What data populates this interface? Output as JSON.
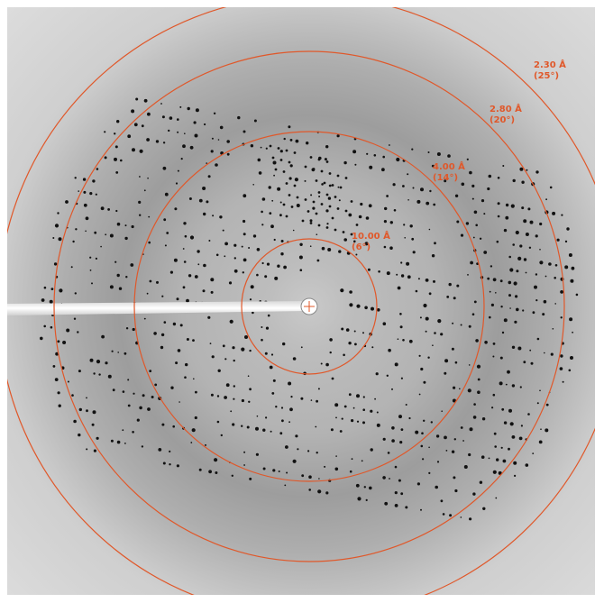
{
  "rings": [
    {
      "resolution": "10.00 Å",
      "angle": "(6°)"
    },
    {
      "resolution": "4.00 Å",
      "angle": "(14°)"
    },
    {
      "resolution": "2.80 Å",
      "angle": "(20°)"
    },
    {
      "resolution": "2.30 Å",
      "angle": "(25°)"
    }
  ]
}
